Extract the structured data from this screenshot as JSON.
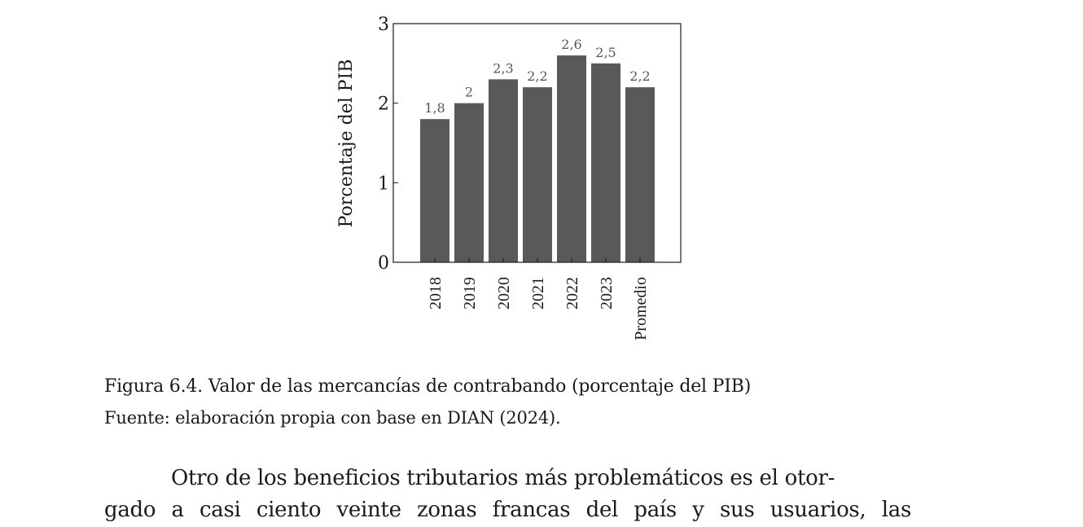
{
  "chart_data": {
    "type": "bar",
    "categories": [
      "2018",
      "2019",
      "2020",
      "2021",
      "2022",
      "2023",
      "Promedio"
    ],
    "values": [
      1.8,
      2.0,
      2.3,
      2.2,
      2.6,
      2.5,
      2.2
    ],
    "data_labels": [
      "1,8",
      "2",
      "2,3",
      "2,2",
      "2,6",
      "2,5",
      "2,2"
    ],
    "ylabel": "Porcentaje del PIB",
    "xlabel": "",
    "ylim": [
      0,
      3
    ],
    "yticks": [
      0,
      1,
      2,
      3
    ],
    "ytick_labels": [
      "0",
      "1",
      "2",
      "3"
    ],
    "grid": false,
    "bar_color": "#595959",
    "label_color": "#555555"
  },
  "caption": {
    "title": "Figura 6.4. Valor de las mercancías de contrabando (porcentaje del PIB)",
    "source": "Fuente: elaboración propia con base en DIAN (2024)."
  },
  "body_text": {
    "line1": "Otro de los beneficios tributarios más problemáticos es el otor-",
    "line2": "gado a casi ciento veinte zonas francas del país y sus usuarios, las"
  }
}
